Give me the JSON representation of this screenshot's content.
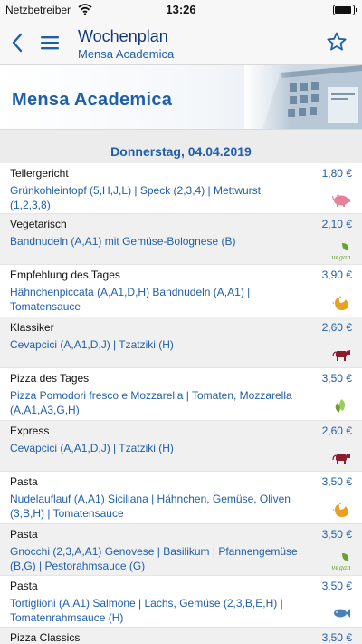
{
  "status": {
    "carrier": "Netzbetreiber",
    "time": "13:26"
  },
  "nav": {
    "title": "Wochenplan",
    "subtitle": "Mensa Academica"
  },
  "banner": {
    "name": "Mensa Academica"
  },
  "date_header": "Donnerstag, 04.04.2019",
  "icon_colors": {
    "pig": "#e8809a",
    "vegan": "#6aa02e",
    "chicken": "#e8a020",
    "cow": "#8b1e2e",
    "fish": "#4a82b8"
  },
  "meals": [
    {
      "category": "Tellergericht",
      "description": "Grünkohleintopf (5,H,J,L) | Speck (2,3,4) | Mettwurst (1,2,3,8)",
      "price": "1,80 €",
      "icon": "pig-icon"
    },
    {
      "category": "Vegetarisch",
      "description": "Bandnudeln (A,A1) mit Gemüse-Bolognese (B)",
      "price": "2,10 €",
      "icon": "vegan-icon",
      "icon_label": "vegan"
    },
    {
      "category": "Empfehlung des Tages",
      "description": "Hähnchenpiccata (A,A1,D,H) Bandnudeln (A,A1) | Tomatensauce",
      "price": "3,90 €",
      "icon": "chicken-icon"
    },
    {
      "category": "Klassiker",
      "description": "Cevapcici (A,A1,D,J) | Tzatziki (H)",
      "price": "2,60 €",
      "icon": "cow-icon"
    },
    {
      "category": "Pizza des Tages",
      "description": "Pizza Pomodori fresco e Mozzarella | Tomaten, Mozzarella (A,A1,A3,G,H)",
      "price": "3,50 €",
      "icon": "vegetarian-leaf-icon"
    },
    {
      "category": "Express",
      "description": "Cevapcici (A,A1,D,J) | Tzatziki (H)",
      "price": "2,60 €",
      "icon": "cow-icon"
    },
    {
      "category": "Pasta",
      "description": "Nudelauflauf (A,A1) Siciliana | Hähnchen, Gemüse, Oliven (3,B,H) | Tomatensauce",
      "price": "3,50 €",
      "icon": "chicken-icon"
    },
    {
      "category": "Pasta",
      "description": "Gnocchi (2,3,A,A1) Genovese | Basilikum | Pfannengemüse (B,G) | Pestorahmsauce (G)",
      "price": "3,50 €",
      "icon": "vegan-icon",
      "icon_label": "vegan"
    },
    {
      "category": "Pasta",
      "description": "Tortiglioni (A,A1) Salmone | Lachs, Gemüse (2,3,B,E,H) | Tomatenrahmsauce (H)",
      "price": "3,50 €",
      "icon": "fish-icon"
    },
    {
      "category": "Pizza Classics",
      "description": "",
      "price": "3,50 €",
      "icon": ""
    }
  ]
}
